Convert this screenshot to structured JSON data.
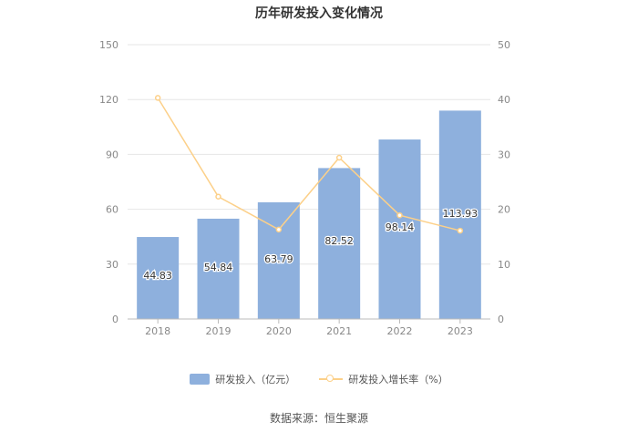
{
  "chart_data": {
    "type": "bar",
    "title": "历年研发投入变化情况",
    "categories": [
      "2018",
      "2019",
      "2020",
      "2021",
      "2022",
      "2023"
    ],
    "series": [
      {
        "name": "研发投入（亿元）",
        "type": "bar",
        "axis": "left",
        "values": [
          44.83,
          54.84,
          63.79,
          82.52,
          98.14,
          113.93
        ],
        "labels": [
          "44.83",
          "54.84",
          "63.79",
          "82.52",
          "98.14",
          "113.93"
        ],
        "color": "#8eb0dd"
      },
      {
        "name": "研发投入增长率（%）",
        "type": "line",
        "axis": "right",
        "values": [
          40.3,
          22.3,
          16.3,
          29.4,
          18.9,
          16.1
        ],
        "color": "#fcd089"
      }
    ],
    "y_left": {
      "min": 0,
      "max": 150,
      "ticks": [
        "0",
        "30",
        "60",
        "90",
        "120",
        "150"
      ]
    },
    "y_right": {
      "min": 0,
      "max": 50,
      "ticks": [
        "0",
        "10",
        "20",
        "30",
        "40",
        "50"
      ]
    },
    "grid": true,
    "legend_position": "bottom"
  },
  "source": "数据来源：恒生聚源"
}
